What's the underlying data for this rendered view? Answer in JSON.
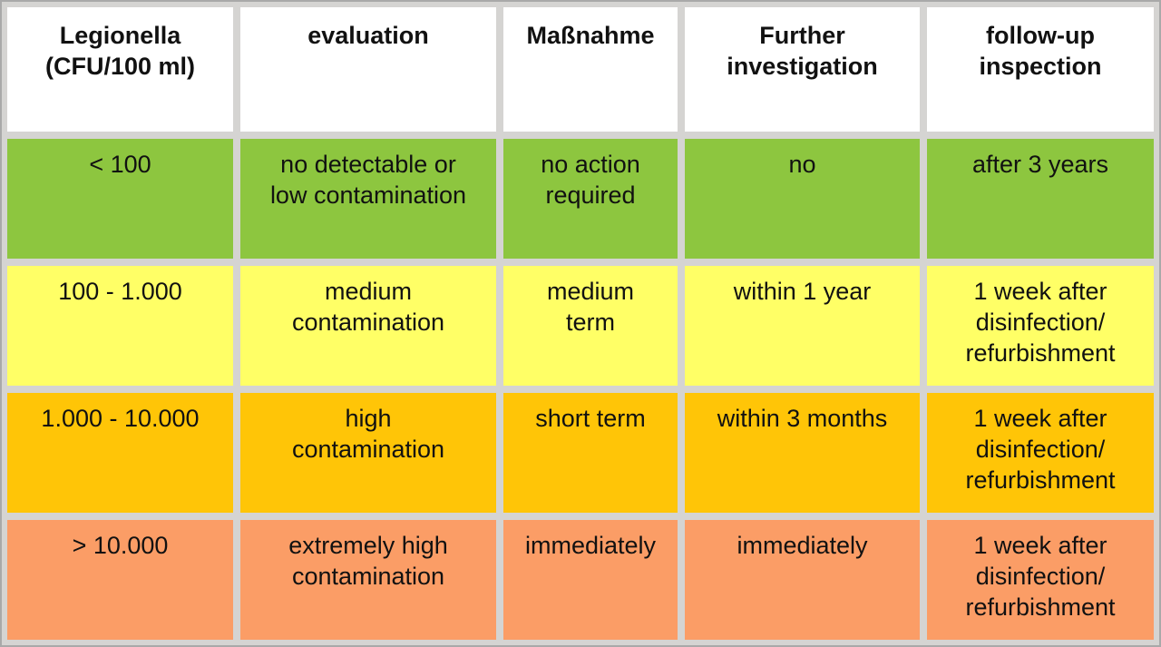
{
  "colors": {
    "frame_background": "#D5D4D2",
    "frame_border": "#A9A9A9",
    "header_bg": "#FFFFFF",
    "level_low": "#8DC63F",
    "level_medium": "#FFFF66",
    "level_high": "#FFC507",
    "level_extreme": "#FB9D66",
    "text": "#111111"
  },
  "table": {
    "header": [
      "Legionella\n(CFU/100 ml)",
      "evaluation",
      "Maßnahme",
      "Further\ninvestigation",
      "follow-up\ninspection"
    ],
    "rows": [
      {
        "level": "low",
        "color": "#8DC63F",
        "cells": [
          "< 100",
          "no detectable or\nlow contamination",
          "no action\nrequired",
          "no",
          "after 3 years"
        ]
      },
      {
        "level": "medium",
        "color": "#FFFF66",
        "cells": [
          "100 - 1.000",
          "medium\ncontamination",
          "medium\nterm",
          "within 1 year",
          "1 week after\ndisinfection/\nrefurbishment"
        ]
      },
      {
        "level": "high",
        "color": "#FFC507",
        "cells": [
          "1.000 - 10.000",
          "high\ncontamination",
          "short term",
          "within 3 months",
          "1 week after\ndisinfection/\nrefurbishment"
        ]
      },
      {
        "level": "extremely-high",
        "color": "#FB9D66",
        "cells": [
          "> 10.000",
          "extremely high\ncontamination",
          "immediately",
          "immediately",
          "1 week after\ndisinfection/\nrefurbishment"
        ]
      }
    ]
  },
  "chart_data": {
    "type": "table",
    "title": "Legionella contamination evaluation and measures",
    "columns": [
      "Legionella (CFU/100 ml)",
      "evaluation",
      "Maßnahme",
      "Further investigation",
      "follow-up inspection"
    ],
    "rows": [
      [
        "< 100",
        "no detectable or low contamination",
        "no action required",
        "no",
        "after 3 years"
      ],
      [
        "100 - 1.000",
        "medium contamination",
        "medium term",
        "within 1 year",
        "1 week after disinfection/ refurbishment"
      ],
      [
        "1.000 - 10.000",
        "high contamination",
        "short term",
        "within 3 months",
        "1 week after disinfection/ refurbishment"
      ],
      [
        "> 10.000",
        "extremely high contamination",
        "immediately",
        "immediately",
        "1 week after disinfection/ refurbishment"
      ]
    ],
    "row_colors": [
      "#8DC63F",
      "#FFFF66",
      "#FFC507",
      "#FB9D66"
    ],
    "row_levels": [
      "low",
      "medium",
      "high",
      "extremely high"
    ]
  }
}
